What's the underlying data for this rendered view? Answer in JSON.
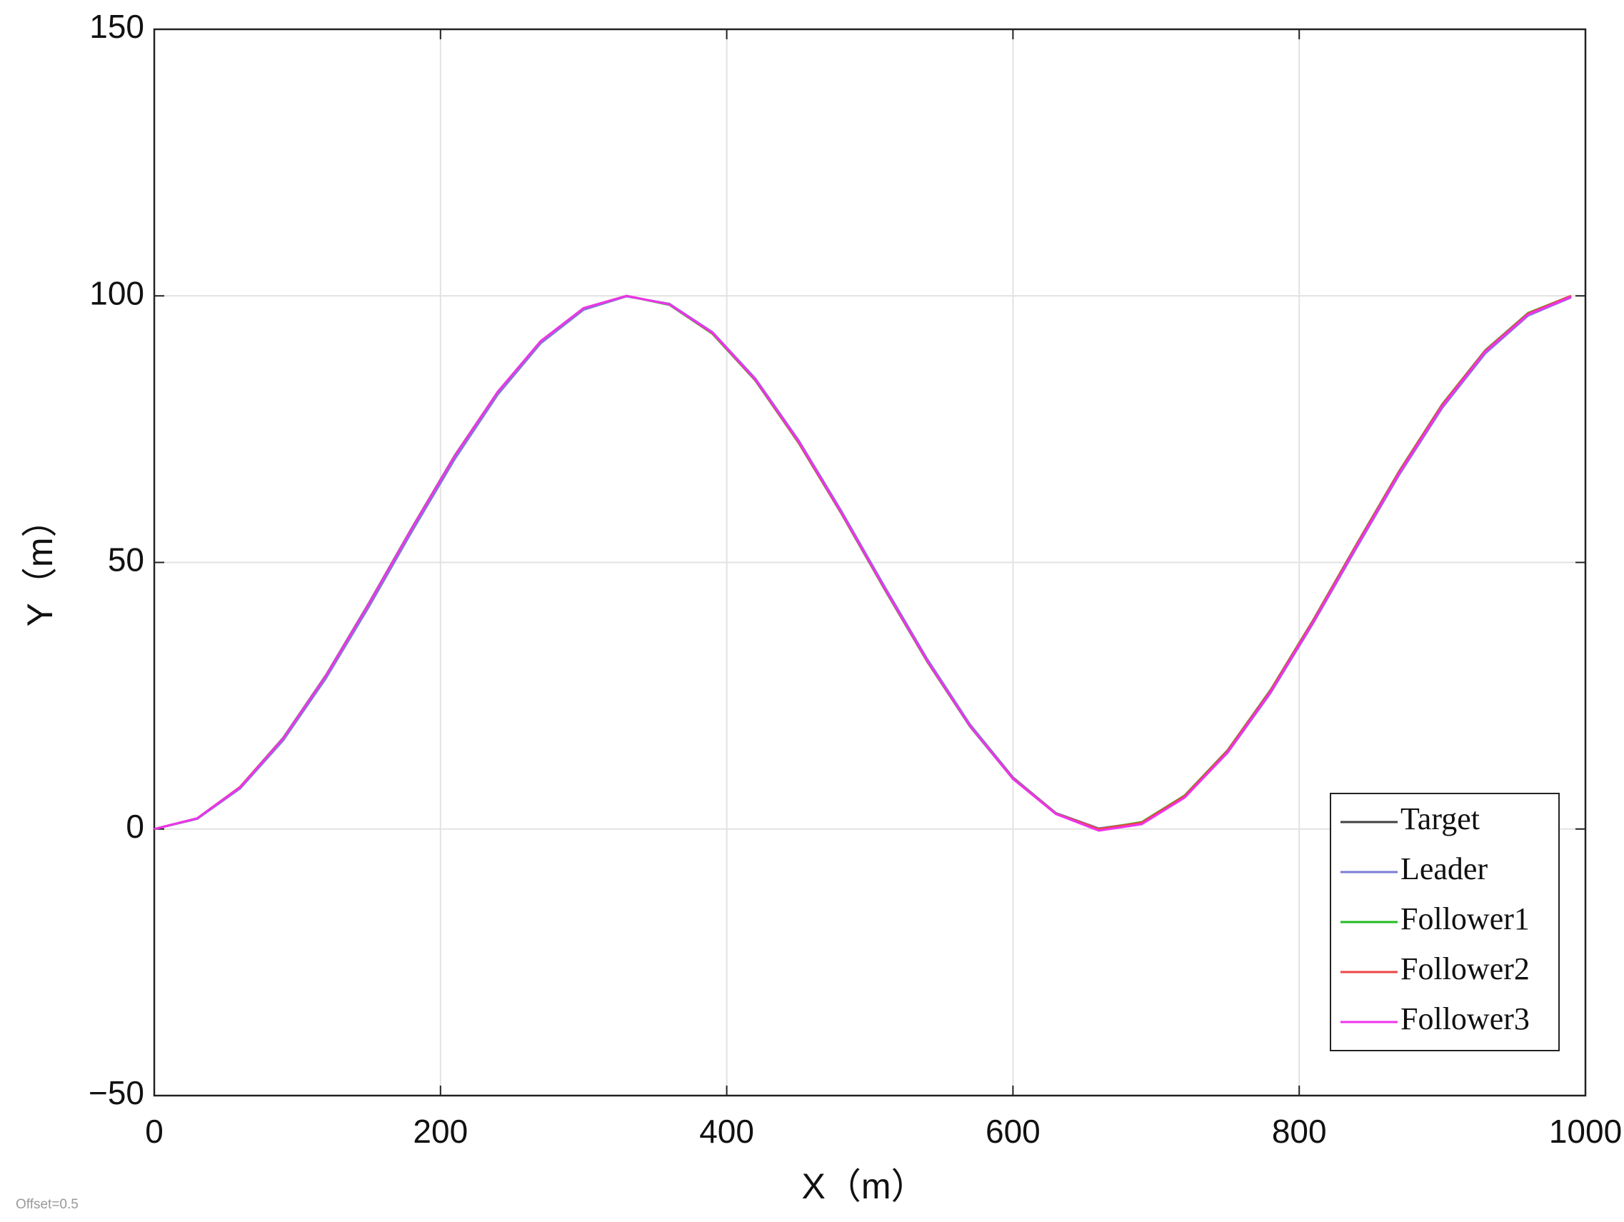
{
  "chart_data": {
    "type": "line",
    "x_label": "X（m）",
    "y_label": "Y（m）",
    "footnote": "Offset=0.5",
    "x": [
      0,
      30,
      60,
      90,
      120,
      150,
      180,
      210,
      240,
      270,
      300,
      330,
      360,
      390,
      420,
      450,
      480,
      510,
      540,
      570,
      600,
      630,
      660,
      690,
      720,
      750,
      780,
      810,
      840,
      870,
      900,
      930,
      960,
      990
    ],
    "series": [
      {
        "name": "Target",
        "color": "#404040",
        "values": [
          0,
          2.0,
          7.8,
          16.9,
          28.7,
          42.2,
          56.3,
          69.9,
          81.9,
          91.4,
          97.6,
          100.0,
          98.4,
          93.0,
          84.2,
          72.7,
          59.4,
          45.3,
          31.6,
          19.4,
          9.6,
          3.0,
          0.1,
          1.2,
          6.2,
          14.6,
          25.9,
          39.1,
          53.1,
          66.9,
          79.4,
          89.5,
          96.5,
          99.8
        ]
      },
      {
        "name": "Leader",
        "color": "#7b7bd6",
        "values": [
          0,
          1.9,
          7.6,
          16.6,
          28.3,
          41.7,
          55.8,
          69.4,
          81.5,
          91.1,
          97.4,
          99.9,
          98.5,
          93.2,
          84.5,
          73.0,
          59.7,
          45.6,
          31.9,
          19.6,
          9.7,
          3.0,
          0.1,
          1.1,
          6.0,
          14.3,
          25.5,
          38.7,
          52.7,
          66.5,
          79.0,
          89.2,
          96.3,
          99.7
        ]
      },
      {
        "name": "Follower1",
        "color": "#22bb22",
        "values": [
          0,
          2.0,
          7.9,
          17.1,
          28.9,
          42.4,
          56.5,
          70.1,
          82.0,
          91.5,
          97.7,
          100.0,
          98.3,
          92.9,
          84.1,
          72.5,
          59.2,
          45.1,
          31.4,
          19.2,
          9.4,
          2.9,
          0.0,
          1.3,
          6.3,
          14.8,
          26.1,
          39.3,
          53.4,
          67.2,
          79.7,
          89.8,
          96.8,
          100.0
        ]
      },
      {
        "name": "Follower2",
        "color": "#ee4444",
        "values": [
          0,
          2.0,
          7.9,
          17.0,
          28.8,
          42.3,
          56.4,
          70.0,
          82.0,
          91.5,
          97.7,
          100.0,
          98.4,
          93.0,
          84.2,
          72.6,
          59.3,
          45.2,
          31.5,
          19.3,
          9.5,
          2.9,
          0.0,
          1.2,
          6.2,
          14.7,
          26.0,
          39.2,
          53.3,
          67.1,
          79.6,
          89.7,
          96.7,
          100.0
        ]
      },
      {
        "name": "Follower3",
        "color": "#ee33ee",
        "values": [
          0,
          2.0,
          7.8,
          17.0,
          28.8,
          42.3,
          56.4,
          70.0,
          82.0,
          91.5,
          97.7,
          100.0,
          98.4,
          93.1,
          84.3,
          72.8,
          59.4,
          45.3,
          31.6,
          19.3,
          9.4,
          2.8,
          -0.3,
          0.9,
          5.9,
          14.4,
          25.7,
          38.9,
          53.0,
          66.8,
          79.3,
          89.5,
          96.5,
          99.8
        ]
      }
    ],
    "xlim": [
      0,
      1000
    ],
    "ylim": [
      -50,
      150
    ],
    "xticks": [
      0,
      200,
      400,
      600,
      800,
      1000
    ],
    "yticks": [
      {
        "value": -50,
        "label": "−50"
      },
      0,
      50,
      100,
      150
    ],
    "grid": true,
    "legend": "lower right"
  }
}
